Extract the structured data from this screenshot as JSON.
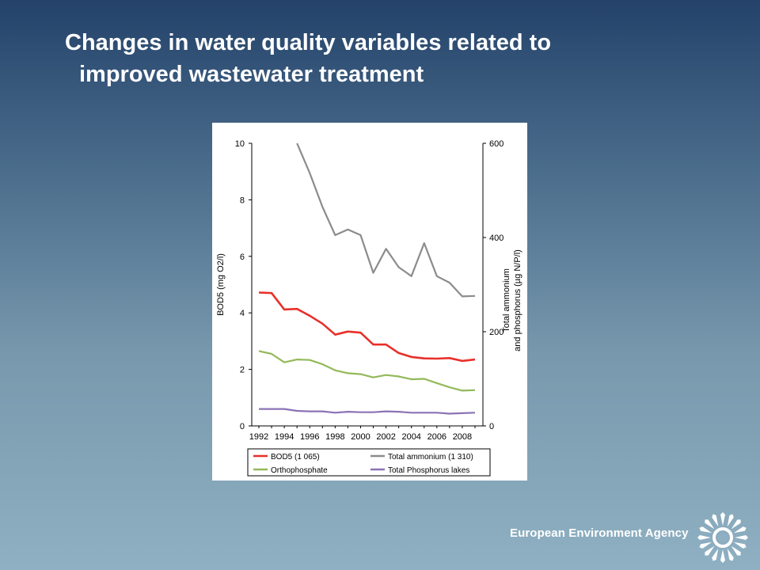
{
  "slide": {
    "title_line1": "Changes in water quality variables related to",
    "title_line2": "improved wastewater treatment",
    "agency_name": "European Environment Agency",
    "logo_icon": "eea-sun-logo"
  },
  "colors": {
    "background_top": "#24426a",
    "background_bottom": "#8fb0c2",
    "bod5": "#e8302a",
    "ammonium": "#8c8c8c",
    "orthophosphate": "#93b95a",
    "phosphorus": "#8b73b5"
  },
  "chart_data": {
    "type": "line",
    "ylabel_left": "BOD5 (mg O2/l)",
    "ylabel_right_line1": "Total ammonium",
    "ylabel_right_line2": "and phosphorus (µg N/P/l)",
    "ylim_left": [
      0,
      10
    ],
    "ylim_right": [
      0,
      600
    ],
    "yticks_left": [
      "0",
      "2",
      "4",
      "6",
      "8",
      "10"
    ],
    "yticks_right": [
      "0",
      "200",
      "400",
      "600"
    ],
    "x": [
      1992,
      1993,
      1994,
      1995,
      1996,
      1997,
      1998,
      1999,
      2000,
      2001,
      2002,
      2003,
      2004,
      2005,
      2006,
      2007,
      2008,
      2009
    ],
    "xtick_labels": [
      "1992",
      "1994",
      "1996",
      "1998",
      "2000",
      "2002",
      "2004",
      "2006",
      "2008"
    ],
    "grid": false,
    "legend_position": "bottom",
    "series": [
      {
        "name": "BOD5 (1 065)",
        "axis": "left",
        "color": "#e8302a",
        "values": [
          4.72,
          4.7,
          4.12,
          4.14,
          3.9,
          3.62,
          3.23,
          3.34,
          3.3,
          2.88,
          2.88,
          2.58,
          2.44,
          2.39,
          2.38,
          2.4,
          2.3,
          2.35
        ]
      },
      {
        "name": "Total ammonium (1 310)",
        "axis": "right",
        "color": "#8c8c8c",
        "values": [
          null,
          null,
          null,
          600,
          537,
          465,
          405,
          417,
          405,
          325,
          376,
          337,
          318,
          388,
          318,
          304,
          275,
          276
        ]
      },
      {
        "name": "Orthophosphate",
        "axis": "right",
        "color": "#93b95a",
        "values": [
          159,
          153,
          135,
          141,
          140,
          131,
          118,
          112,
          110,
          103,
          108,
          105,
          99,
          100,
          91,
          82,
          75,
          76
        ]
      },
      {
        "name": "Total Phosphorus lakes",
        "axis": "right",
        "color": "#8b73b5",
        "values": [
          36,
          36,
          36,
          32,
          31,
          31,
          28,
          30,
          29,
          29,
          31,
          30,
          28,
          28,
          28,
          26,
          27,
          28
        ]
      }
    ]
  }
}
